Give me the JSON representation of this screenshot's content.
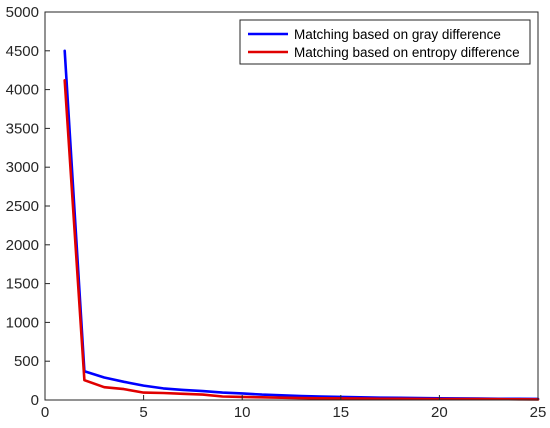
{
  "chart_data": {
    "type": "line",
    "xlim": [
      0,
      25
    ],
    "ylim": [
      0,
      5000
    ],
    "x_ticks": [
      0,
      5,
      10,
      15,
      20,
      25
    ],
    "y_ticks": [
      0,
      500,
      1000,
      1500,
      2000,
      2500,
      3000,
      3500,
      4000,
      4500,
      5000
    ],
    "grid": false,
    "legend_position": "top-right",
    "x": [
      1,
      2,
      3,
      4,
      5,
      6,
      7,
      8,
      9,
      10,
      11,
      12,
      13,
      14,
      15,
      16,
      17,
      18,
      19,
      20,
      21,
      22,
      23,
      24,
      25
    ],
    "series": [
      {
        "name": "Matching based on gray difference",
        "color": "#0000ff",
        "values": [
          4500,
          370,
          290,
          235,
          185,
          150,
          130,
          115,
          95,
          85,
          70,
          60,
          50,
          45,
          40,
          35,
          30,
          28,
          25,
          22,
          20,
          18,
          16,
          15,
          14
        ]
      },
      {
        "name": "Matching based on entropy difference",
        "color": "#e00000",
        "values": [
          4120,
          255,
          165,
          140,
          95,
          90,
          80,
          70,
          45,
          40,
          35,
          30,
          25,
          22,
          20,
          18,
          16,
          15,
          14,
          13,
          12,
          11,
          10,
          9,
          8
        ]
      }
    ]
  }
}
